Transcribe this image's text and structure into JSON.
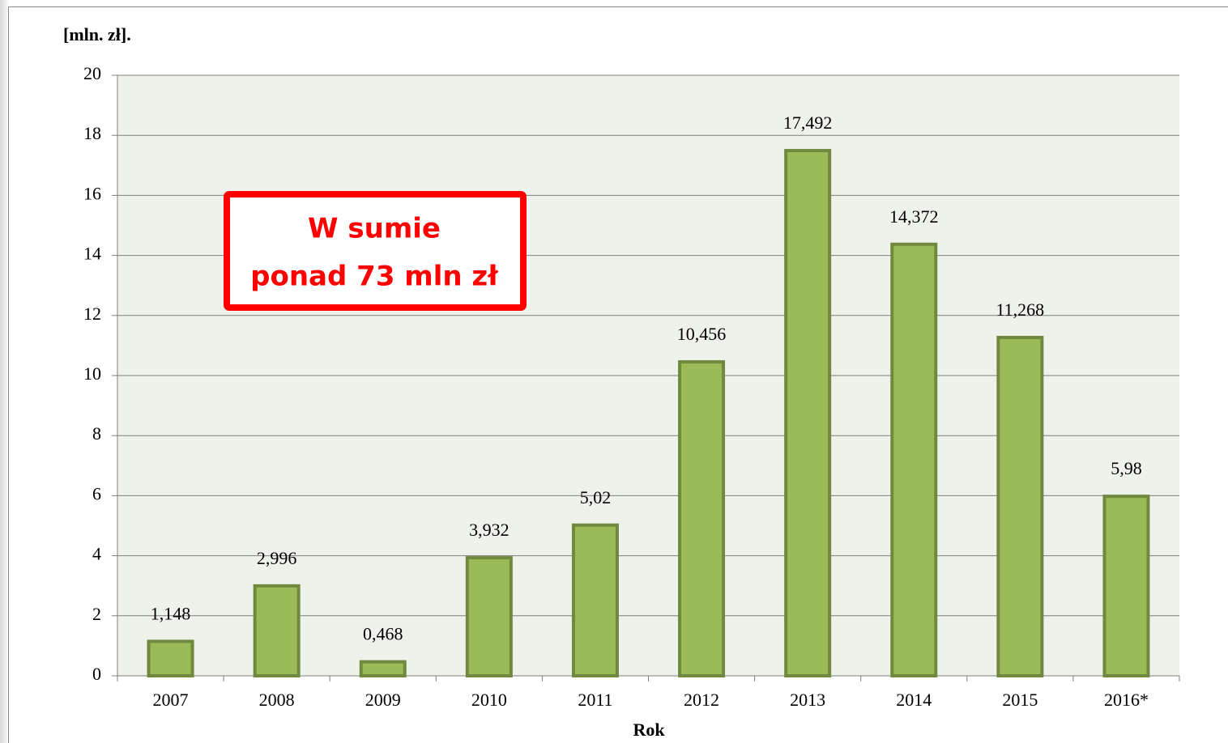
{
  "chart_data": {
    "type": "bar",
    "y_axis_label": "[mln. zł].",
    "x_axis_label": "Rok",
    "annotations": [
      "W sumie",
      "ponad 73 mln zł"
    ],
    "categories": [
      "2007",
      "2008",
      "2009",
      "2010",
      "2011",
      "2012",
      "2013",
      "2014",
      "2015",
      "2016*"
    ],
    "values": [
      1.148,
      2.996,
      0.468,
      3.932,
      5.02,
      10.456,
      17.492,
      14.372,
      11.268,
      5.98
    ],
    "value_labels": [
      "1,148",
      "2,996",
      "0,468",
      "3,932",
      "5,02",
      "10,456",
      "17,492",
      "14,372",
      "11,268",
      "5,98"
    ],
    "color": "#9bbb59",
    "ylim": [
      0,
      20
    ],
    "yticks": [
      0,
      2,
      4,
      6,
      8,
      10,
      12,
      14,
      16,
      18,
      20
    ],
    "grid": true
  }
}
